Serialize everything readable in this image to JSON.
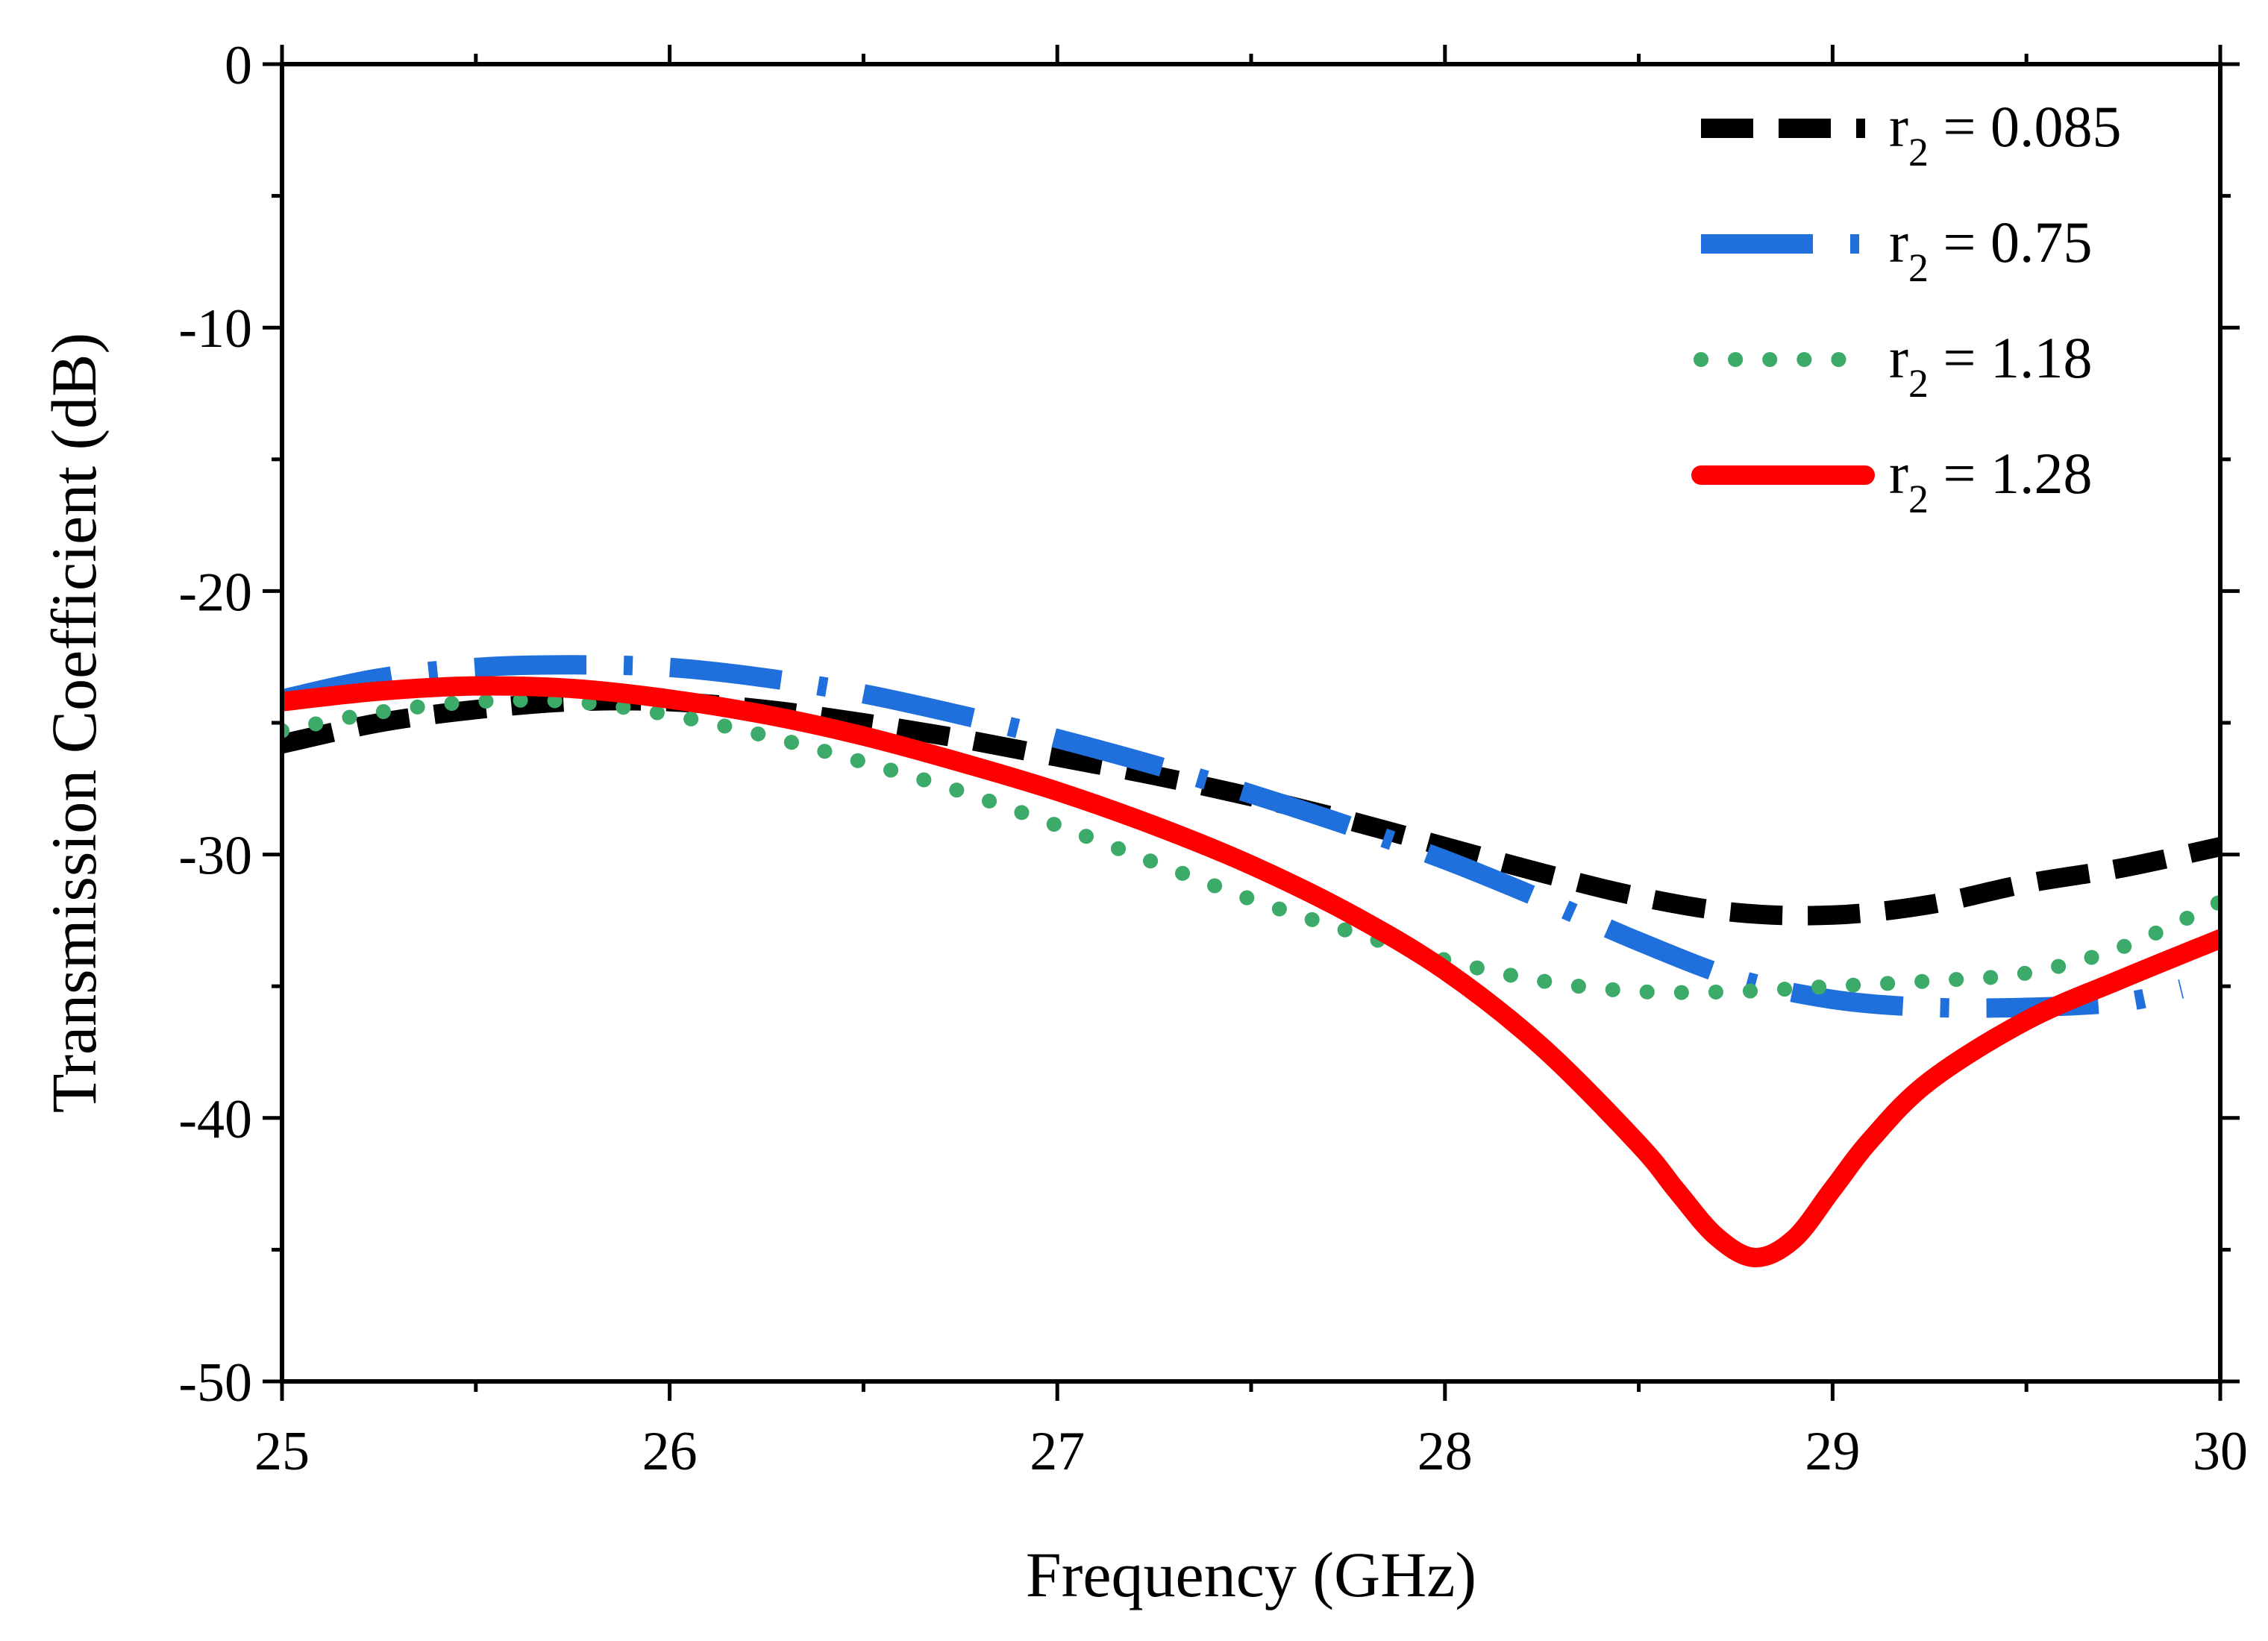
{
  "chart_data": {
    "type": "line",
    "title": "",
    "xlabel": "Frequency (GHz)",
    "ylabel": "Transmission Coefficient (dB)",
    "xlim": [
      25,
      30
    ],
    "ylim": [
      -50,
      0
    ],
    "xticks": [
      25,
      26,
      27,
      28,
      29,
      30
    ],
    "yticks": [
      0,
      -10,
      -20,
      -30,
      -40,
      -50
    ],
    "xtick_labels": [
      "25",
      "26",
      "27",
      "28",
      "29",
      "30"
    ],
    "ytick_labels": [
      "0",
      "-10",
      "-20",
      "-30",
      "-40",
      "-50"
    ],
    "grid": false,
    "legend_position": "top-right",
    "series": [
      {
        "name": "r2 = 0.085",
        "label_main": "r",
        "label_sub": "2",
        "label_rest": " = 0.085",
        "color": "#000000",
        "style": "dash",
        "x": [
          25,
          25.25,
          25.5,
          25.75,
          26,
          26.25,
          26.5,
          26.75,
          27,
          27.25,
          27.5,
          27.75,
          28,
          28.25,
          28.5,
          28.75,
          29,
          29.25,
          29.5,
          29.75,
          30
        ],
        "y": [
          -25.8,
          -25.0,
          -24.5,
          -24.2,
          -24.2,
          -24.5,
          -25.0,
          -25.6,
          -26.3,
          -27.0,
          -27.8,
          -28.7,
          -29.7,
          -30.7,
          -31.6,
          -32.2,
          -32.3,
          -31.9,
          -31.1,
          -30.5,
          -29.7
        ]
      },
      {
        "name": "r2 = 0.75",
        "label_main": "r",
        "label_sub": "2",
        "label_rest": " = 0.75",
        "color": "#1f6fdc",
        "style": "dashdot",
        "x": [
          25,
          25.25,
          25.5,
          25.75,
          26,
          26.25,
          26.5,
          26.75,
          27,
          27.25,
          27.5,
          27.75,
          28,
          28.25,
          28.5,
          28.75,
          29,
          29.25,
          29.5,
          29.75,
          29.9
        ],
        "y": [
          -24.1,
          -23.3,
          -22.9,
          -22.8,
          -22.9,
          -23.3,
          -23.9,
          -24.7,
          -25.6,
          -26.6,
          -27.7,
          -28.9,
          -30.2,
          -31.7,
          -33.3,
          -34.7,
          -35.5,
          -35.8,
          -35.8,
          -35.6,
          -35.1
        ]
      },
      {
        "name": "r2 = 1.18",
        "label_main": "r",
        "label_sub": "2",
        "label_rest": " = 1.18",
        "color": "#3cab6a",
        "style": "dot",
        "x": [
          25,
          25.25,
          25.5,
          25.75,
          26,
          26.25,
          26.5,
          26.75,
          27,
          27.25,
          27.5,
          27.75,
          28,
          28.25,
          28.5,
          28.75,
          29,
          29.25,
          29.5,
          29.75,
          30
        ],
        "y": [
          -25.3,
          -24.6,
          -24.2,
          -24.2,
          -24.7,
          -25.5,
          -26.5,
          -27.6,
          -28.9,
          -30.3,
          -31.7,
          -32.9,
          -34.0,
          -34.8,
          -35.2,
          -35.2,
          -35.0,
          -34.8,
          -34.5,
          -33.5,
          -31.8
        ]
      },
      {
        "name": "r2 = 1.28",
        "label_main": "r",
        "label_sub": "2",
        "label_rest": " = 1.28",
        "color": "#ff0000",
        "style": "solid",
        "x": [
          25,
          25.25,
          25.5,
          25.75,
          26,
          26.25,
          26.5,
          26.75,
          27,
          27.25,
          27.5,
          27.75,
          28,
          28.25,
          28.5,
          28.6,
          28.7,
          28.8,
          28.9,
          29,
          29.1,
          29.25,
          29.5,
          29.75,
          30
        ],
        "y": [
          -24.2,
          -23.8,
          -23.6,
          -23.7,
          -24.1,
          -24.7,
          -25.5,
          -26.5,
          -27.6,
          -28.9,
          -30.4,
          -32.2,
          -34.4,
          -37.3,
          -41.0,
          -42.8,
          -44.5,
          -45.3,
          -44.6,
          -42.7,
          -40.8,
          -38.6,
          -36.3,
          -34.7,
          -33.2
        ]
      }
    ]
  }
}
